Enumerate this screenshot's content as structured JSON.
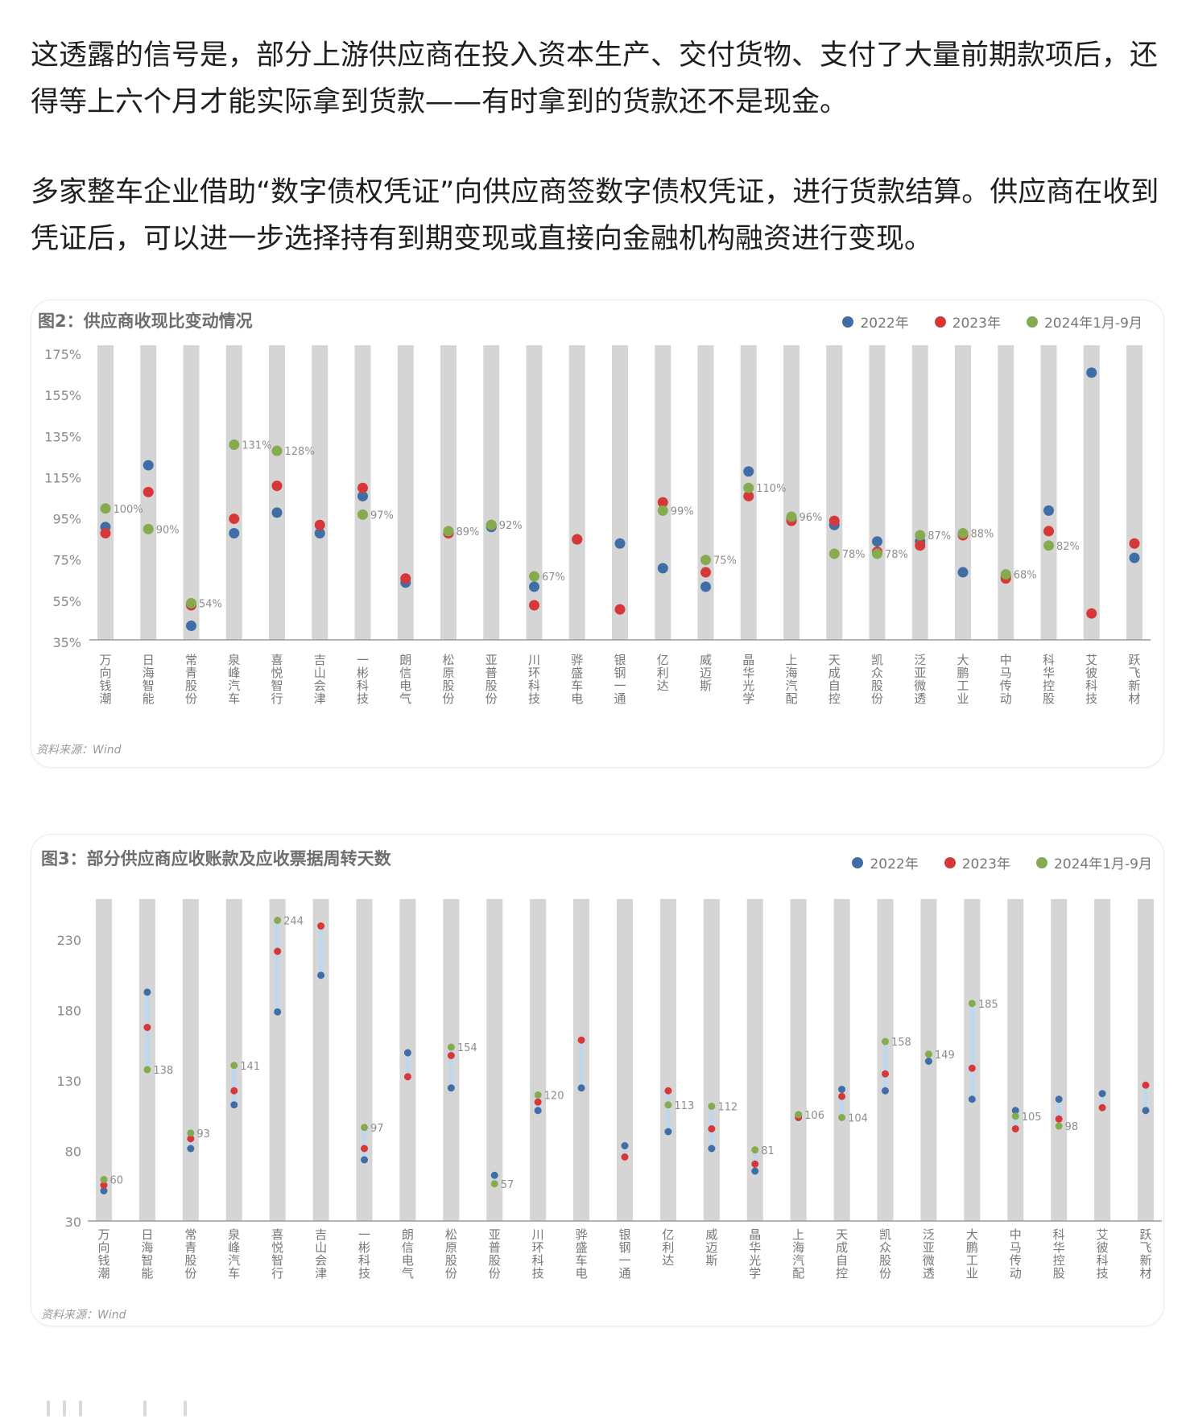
{
  "article": {
    "para1": "这透露的信号是，部分上游供应商在投入资本生产、交付货物、支付了大量前期款项后，还得等上六个月才能实际拿到货款——有时拿到的货款还不是现金。",
    "para2": "多家整车企业借助“数字债权凭证”向供应商签数字债权凭证，进行货款结算。供应商在收到凭证后，可以进一步选择持有到期变现或直接向金融机构融资进行变现。"
  },
  "colors": {
    "s2022": "#3f6ea7",
    "s2023": "#d6383a",
    "s2024": "#86ab4f",
    "column": "#d5d5d5",
    "range": "#bcd7f0"
  },
  "chart_data": [
    {
      "type": "scatter",
      "title": "图2：供应商收现比变动情况",
      "source": "资料来源：Wind",
      "ylim": [
        35,
        175
      ],
      "yticks": [
        "175%",
        "155%",
        "135%",
        "115%",
        "95%",
        "75%",
        "55%",
        "35%"
      ],
      "ytick_values": [
        175,
        155,
        135,
        115,
        95,
        75,
        55,
        35
      ],
      "legend_position": "top-right",
      "categories": [
        "万向钱潮",
        "日海智能",
        "常青股份",
        "泉峰汽车",
        "喜悦智行",
        "吉山会津",
        "一彬科技",
        "朗信电气",
        "松原股份",
        "亚普股份",
        "川环科技",
        "骅盛车电",
        "银钢一通",
        "亿利达",
        "威迈斯",
        "晶华光学",
        "上海汽配",
        "天成自控",
        "凯众股份",
        "泛亚微透",
        "大鹏工业",
        "中马传动",
        "科华控股",
        "艾彼科技",
        "跃飞新材"
      ],
      "series": [
        {
          "name": "2022年",
          "values": [
            91,
            121,
            43,
            88,
            98,
            88,
            106,
            64,
            88,
            91,
            62,
            85,
            83,
            71,
            62,
            118,
            95,
            92,
            84,
            84,
            69,
            67,
            99,
            166,
            76
          ]
        },
        {
          "name": "2023年",
          "values": [
            88,
            108,
            53,
            95,
            111,
            92,
            110,
            66,
            88,
            92,
            53,
            85,
            51,
            103,
            69,
            106,
            94,
            94,
            79,
            82,
            87,
            66,
            89,
            49,
            83
          ]
        },
        {
          "name": "2024年1月-9月",
          "values": [
            100,
            90,
            54,
            131,
            128,
            null,
            97,
            null,
            89,
            92,
            67,
            null,
            null,
            99,
            75,
            110,
            96,
            78,
            78,
            87,
            88,
            68,
            82,
            null,
            null
          ]
        }
      ],
      "point_labels": [
        "100%",
        "90%",
        "54%",
        "131%",
        "128%",
        "",
        "97%",
        "",
        "89%",
        "92%",
        "67%",
        "",
        "",
        "99%",
        "75%",
        "110%",
        "96%",
        "78%",
        "78%",
        "87%",
        "88%",
        "68%",
        "82%",
        "",
        ""
      ]
    },
    {
      "type": "scatter",
      "title": "图3：部分供应商应收账款及应收票据周转天数",
      "source": "资料来源：Wind",
      "ylim": [
        30,
        250
      ],
      "yticks": [
        "230",
        "180",
        "130",
        "80",
        "30"
      ],
      "ytick_values": [
        230,
        180,
        130,
        80,
        30
      ],
      "legend_position": "top-right",
      "categories": [
        "万向钱潮",
        "日海智能",
        "常青股份",
        "泉峰汽车",
        "喜悦智行",
        "吉山会津",
        "一彬科技",
        "朗信电气",
        "松原股份",
        "亚普股份",
        "川环科技",
        "骅盛车电",
        "银钢一通",
        "亿利达",
        "威迈斯",
        "晶华光学",
        "上海汽配",
        "天成自控",
        "凯众股份",
        "泛亚微透",
        "大鹏工业",
        "中马传动",
        "科华控股",
        "艾彼科技",
        "跃飞新材"
      ],
      "series": [
        {
          "name": "2022年",
          "values": [
            52,
            193,
            82,
            113,
            179,
            205,
            74,
            150,
            125,
            63,
            109,
            125,
            84,
            94,
            82,
            66,
            106,
            124,
            123,
            144,
            117,
            109,
            117,
            121,
            109
          ]
        },
        {
          "name": "2023年",
          "values": [
            56,
            168,
            89,
            123,
            222,
            240,
            82,
            133,
            148,
            null,
            115,
            159,
            76,
            123,
            96,
            71,
            104,
            119,
            135,
            null,
            139,
            96,
            103,
            111,
            127
          ]
        },
        {
          "name": "2024年1月-9月",
          "values": [
            60,
            138,
            93,
            141,
            244,
            null,
            97,
            null,
            154,
            57,
            120,
            null,
            null,
            113,
            112,
            81,
            106,
            104,
            158,
            149,
            185,
            105,
            98,
            null,
            null
          ]
        }
      ],
      "point_labels": [
        "60",
        "138",
        "93",
        "141",
        "244",
        "",
        "97",
        "",
        "154",
        "57",
        "120",
        "",
        "",
        "113",
        "112",
        "81",
        "106",
        "104",
        "158",
        "149",
        "185",
        "105",
        "98",
        "",
        ""
      ]
    }
  ],
  "footer": {
    "toolbar_icons": [
      "bar-icon",
      "bar-icon",
      "bar-icon",
      "bar-icon",
      "bar-icon"
    ]
  }
}
